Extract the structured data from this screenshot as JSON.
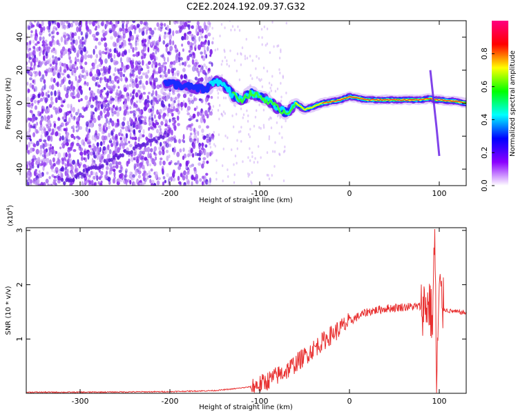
{
  "title": "C2E2.2024.192.09.37.G32",
  "chart_data": [
    {
      "type": "heatmap",
      "xlabel": "Height of straight line (km)",
      "ylabel": "Frequency (Hz)",
      "xlim": [
        -360,
        130
      ],
      "ylim": [
        -50,
        50
      ],
      "xticks": [
        -300,
        -200,
        -100,
        0,
        100
      ],
      "yticks": [
        -40,
        -20,
        0,
        20,
        40
      ],
      "colorbar": {
        "label": "Normalized spectral amplitude",
        "range": [
          0,
          1
        ],
        "ticks": [
          "0.0",
          "0.2",
          "0.4",
          "0.6",
          "0.8"
        ],
        "colors": [
          "#ffffff",
          "#8b00ff",
          "#0000ff",
          "#00ffff",
          "#00ff00",
          "#ffff00",
          "#ff0000",
          "#ff0080"
        ]
      },
      "ridge": {
        "x": [
          -200,
          -180,
          -160,
          -150,
          -140,
          -130,
          -120,
          -110,
          -100,
          -90,
          -80,
          -70,
          -60,
          -50,
          -40,
          -30,
          -20,
          -10,
          0,
          20,
          50,
          80,
          90,
          95,
          100,
          120,
          130
        ],
        "y": [
          12,
          10,
          8,
          14,
          11,
          5,
          2,
          6,
          4,
          1,
          -3,
          -6,
          0,
          -4,
          -2,
          0,
          1,
          2,
          4,
          2,
          2,
          2,
          3,
          2,
          2,
          1,
          0
        ]
      },
      "secondary_track": {
        "x": [
          -320,
          -300,
          -280,
          -260,
          -240,
          -220,
          -200
        ],
        "y": [
          -48,
          -44,
          -38,
          -33,
          -28,
          -23,
          -18
        ]
      }
    },
    {
      "type": "line",
      "xlabel": "Height of straight line (km)",
      "ylabel": "SNR (10 * v/v)",
      "multiplier": "(x10",
      "multiplier_exp": "4",
      "xlim": [
        -360,
        130
      ],
      "ylim": [
        0,
        3.05
      ],
      "xticks": [
        -300,
        -200,
        -100,
        0,
        100
      ],
      "yticks": [
        1,
        2,
        3
      ],
      "color": "#e83030",
      "x": [
        -360,
        -300,
        -200,
        -150,
        -130,
        -110,
        -100,
        -90,
        -70,
        -60,
        -50,
        -45,
        -40,
        -30,
        -20,
        -10,
        0,
        10,
        20,
        40,
        60,
        80,
        85,
        90,
        92,
        95,
        97,
        100,
        105,
        110,
        120,
        130
      ],
      "y": [
        0.02,
        0.02,
        0.03,
        0.05,
        0.08,
        0.12,
        0.16,
        0.24,
        0.42,
        0.55,
        0.68,
        0.75,
        0.82,
        0.95,
        1.08,
        1.2,
        1.32,
        1.42,
        1.5,
        1.56,
        1.59,
        1.6,
        1.62,
        1.65,
        1.2,
        2.95,
        0.15,
        1.9,
        1.55,
        1.52,
        1.5,
        1.48
      ]
    }
  ]
}
